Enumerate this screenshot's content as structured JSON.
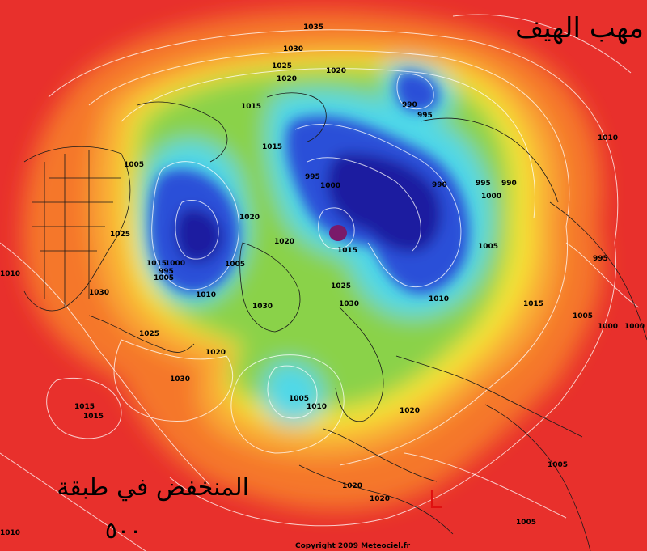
{
  "titles": {
    "top_right": "مهب الهيف",
    "bottom_left_line1": "المنخفض في طبقة",
    "bottom_left_line2": "٥٠٠"
  },
  "copyright": "Copyright 2009 Meteociel.fr",
  "low_marker": "L",
  "colors": {
    "outer_red": "#e8302c",
    "orange": "#f5772a",
    "yellow": "#f7e436",
    "green": "#8ad24a",
    "cyan": "#4fd8e8",
    "blue": "#2a50d8",
    "deep_blue": "#1a1aa0",
    "magenta": "#7a1a6a",
    "low_marker_red": "#e01010"
  },
  "pressure_labels": [
    "1035",
    "1030",
    "1025",
    "1020",
    "1020",
    "1015",
    "1015",
    "1005",
    "1025",
    "1010",
    "1030",
    "1025",
    "1020",
    "1030",
    "1015",
    "1015",
    "1015",
    "1005",
    "1000",
    "995",
    "1005",
    "1010",
    "1030",
    "1020",
    "1020",
    "995",
    "1000",
    "1015",
    "1025",
    "1030",
    "1005",
    "1010",
    "990",
    "995",
    "990",
    "995",
    "990",
    "1000",
    "1005",
    "995",
    "1015",
    "1005",
    "1000",
    "1000",
    "1010",
    "1020",
    "1020",
    "1020",
    "1005",
    "1005",
    "1010"
  ]
}
